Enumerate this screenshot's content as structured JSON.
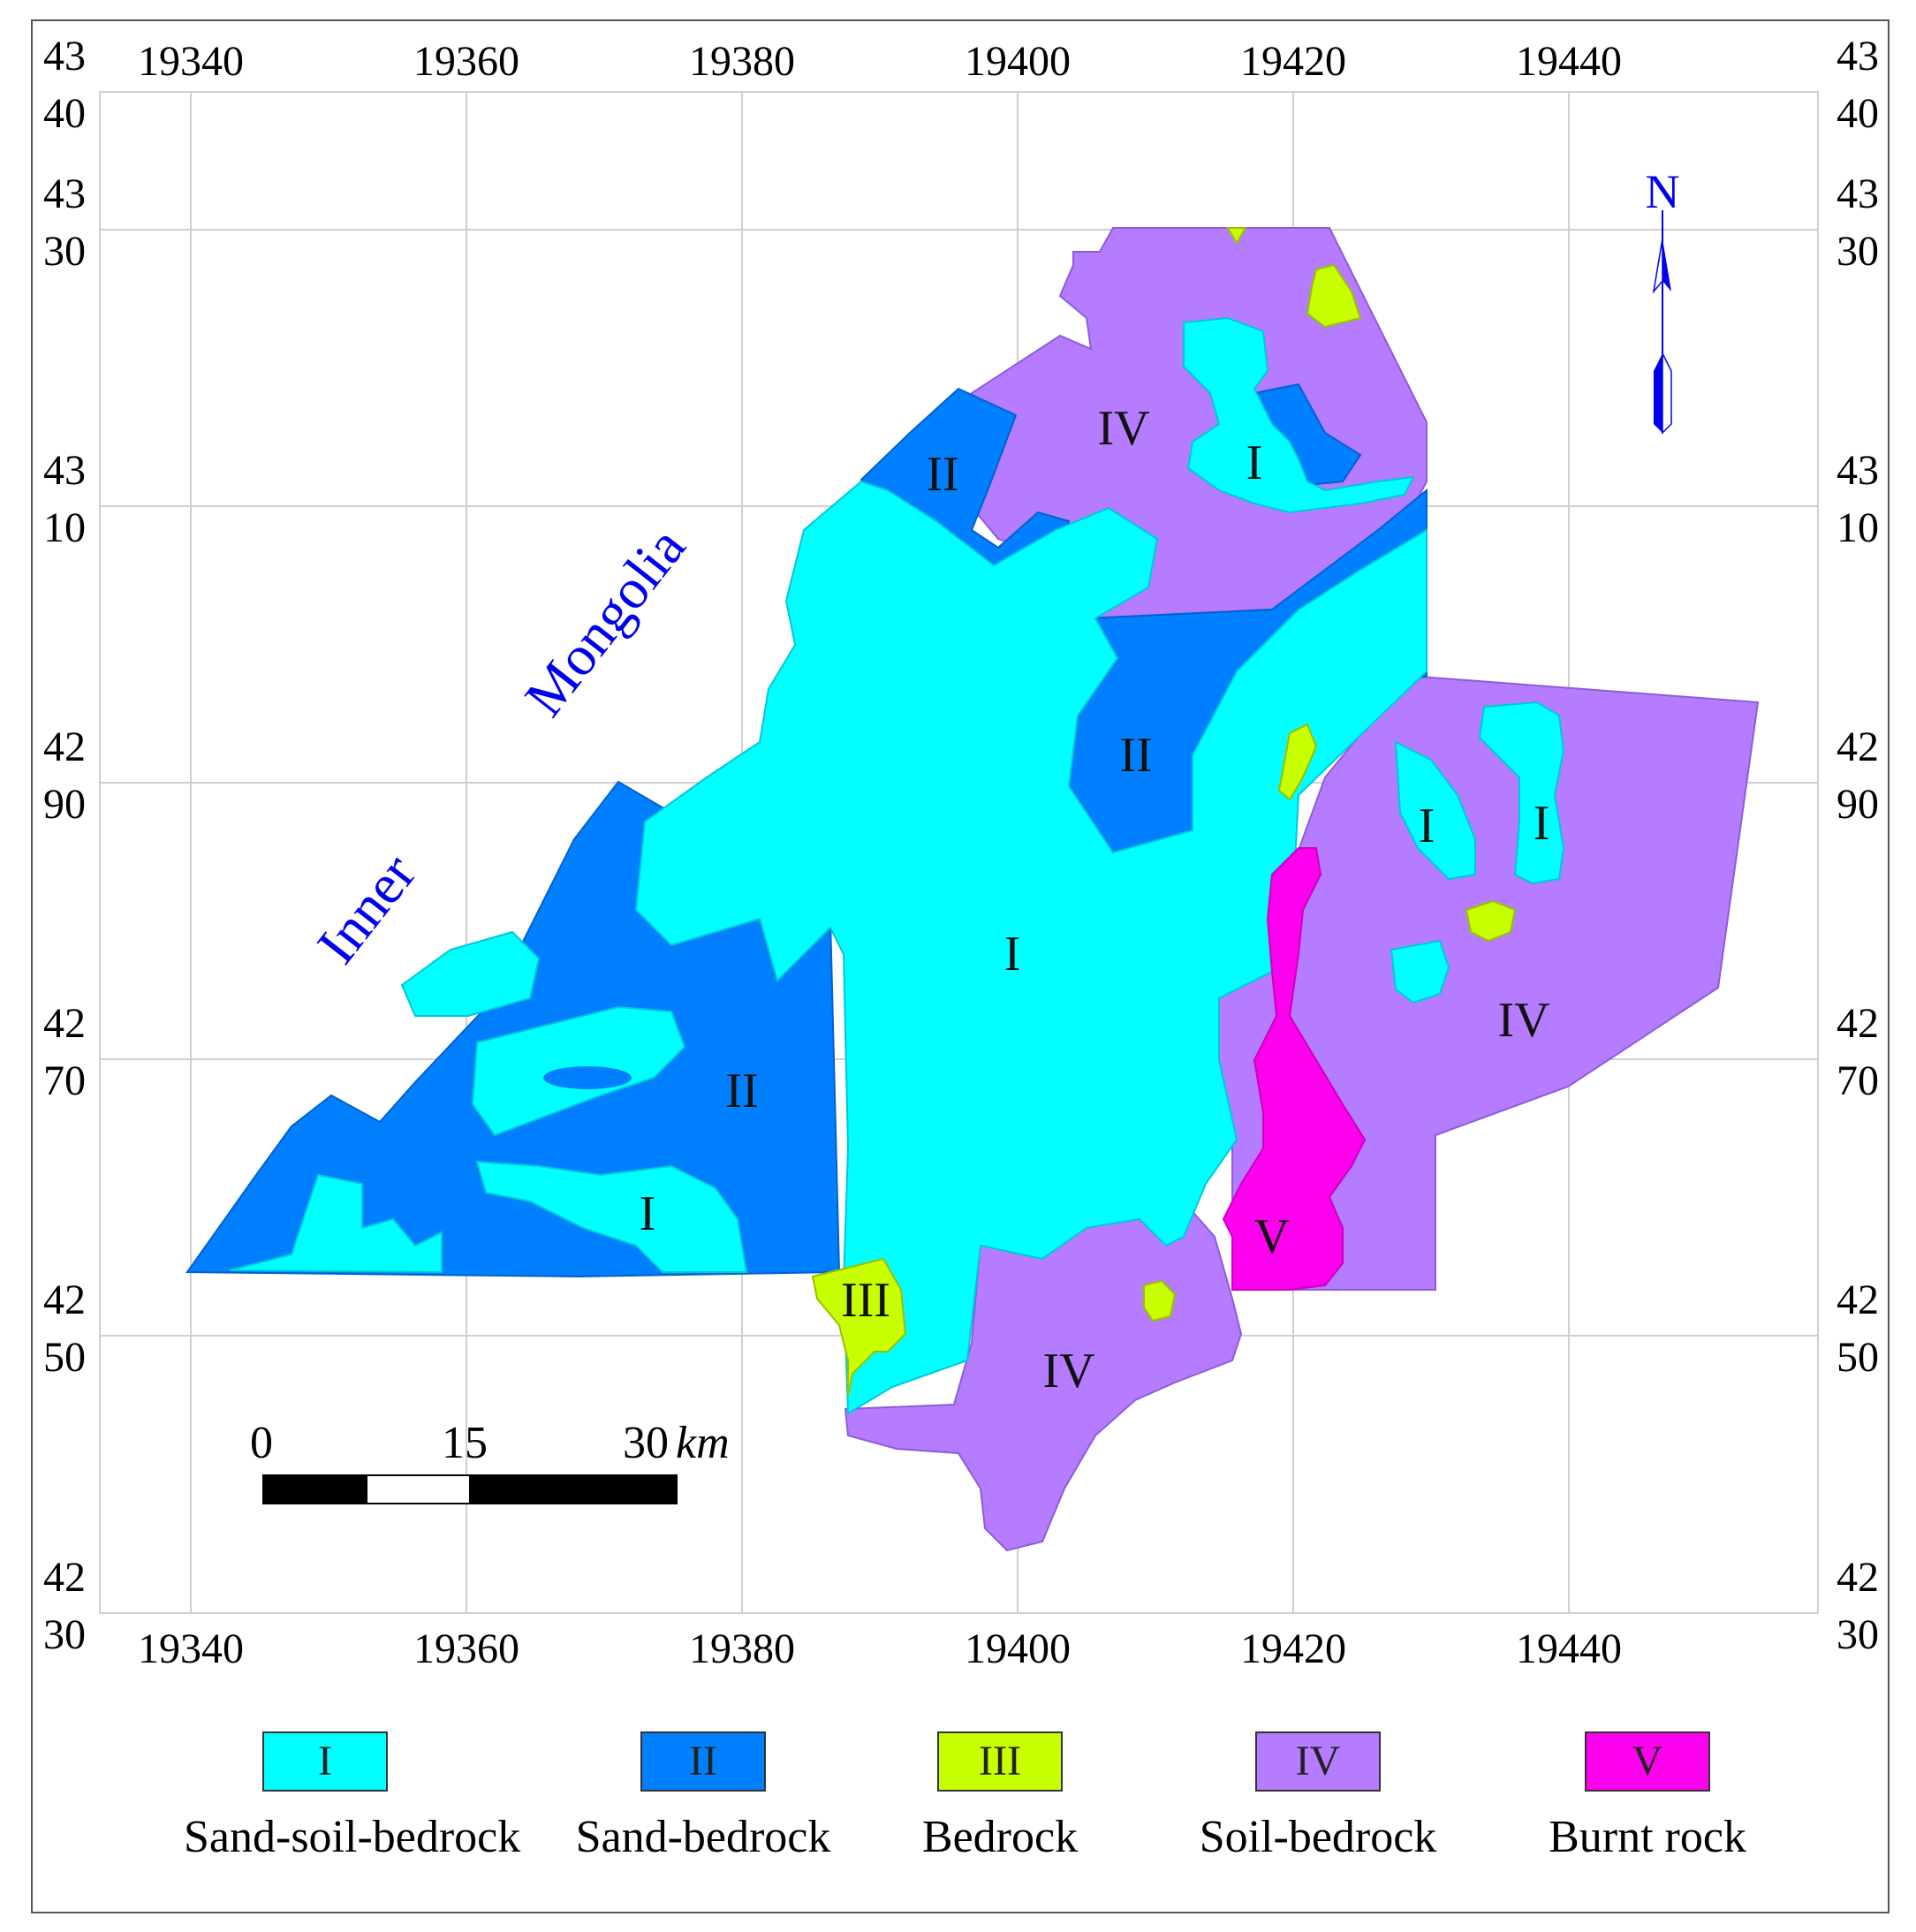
{
  "map": {
    "x_ticks_top": [
      "19340",
      "19360",
      "19380",
      "19400",
      "19420",
      "19440"
    ],
    "x_ticks_bottom": [
      "19340",
      "19360",
      "19380",
      "19400",
      "19420",
      "19440"
    ],
    "y_ticks": [
      {
        "upper": "43",
        "lower": "40"
      },
      {
        "upper": "43",
        "lower": "30"
      },
      {
        "upper": "43",
        "lower": "10"
      },
      {
        "upper": "42",
        "lower": "90"
      },
      {
        "upper": "42",
        "lower": "70"
      },
      {
        "upper": "42",
        "lower": "50"
      },
      {
        "upper": "42",
        "lower": "30"
      }
    ],
    "region_words": [
      "Inner",
      "Mongolia"
    ],
    "north_label": "N",
    "scale": {
      "start": "0",
      "mid": "15",
      "end": "30",
      "unit": "km"
    },
    "zone_labels": {
      "z1": "I",
      "z2": "II",
      "z3": "III",
      "z4": "IV",
      "z5": "V"
    },
    "colors": {
      "sand_soil_bedrock": "#00ffff",
      "sand_bedrock": "#0080ff",
      "bedrock": "#c8ff00",
      "soil_bedrock": "#b57cff",
      "burnt_rock": "#ff00ee",
      "label_blue": "#0000ee"
    }
  },
  "legend": [
    {
      "code": "I",
      "label": "Sand-soil-bedrock",
      "color": "#00ffff"
    },
    {
      "code": "II",
      "label": "Sand-bedrock",
      "color": "#0080ff"
    },
    {
      "code": "III",
      "label": "Bedrock",
      "color": "#c8ff00"
    },
    {
      "code": "IV",
      "label": "Soil-bedrock",
      "color": "#b57cff"
    },
    {
      "code": "V",
      "label": "Burnt rock",
      "color": "#ff00ee"
    }
  ]
}
